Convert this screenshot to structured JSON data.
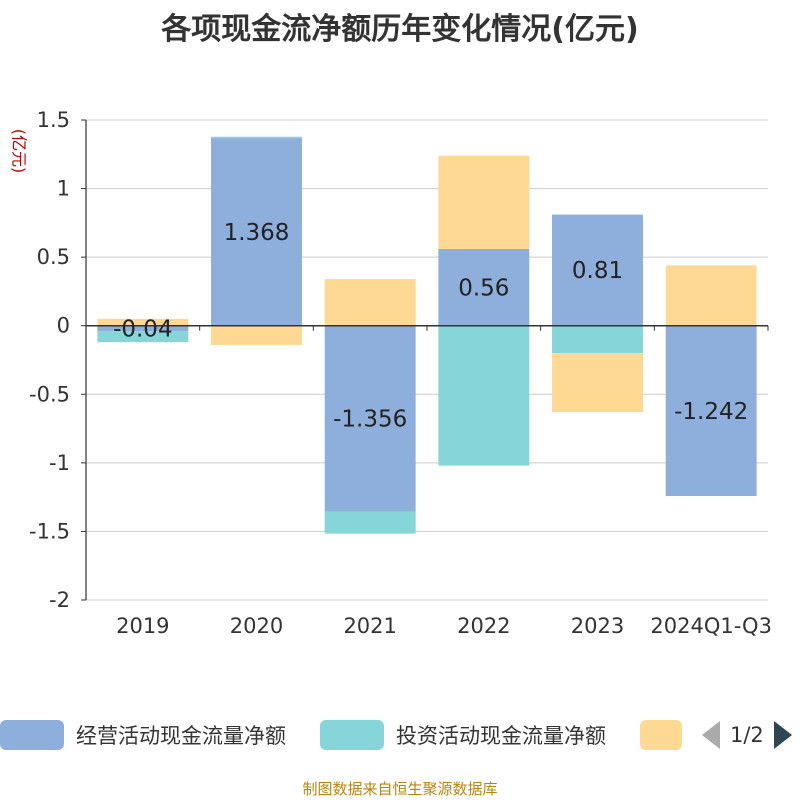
{
  "page": {
    "title": "各项现金流净额历年变化情况(亿元)",
    "source": "制图数据来自恒生聚源数据库",
    "pager": "1/2"
  },
  "chart_data": {
    "type": "bar",
    "stacked": true,
    "title": "各项现金流净额历年变化情况(亿元)",
    "ylabel": "(亿元)",
    "xlabel": "",
    "ylim": [
      -2,
      1.5
    ],
    "yticks": [
      1.5,
      1,
      0.5,
      0,
      -0.5,
      -1,
      -1.5,
      -2
    ],
    "grid": true,
    "legend_position": "bottom",
    "categories": [
      "2019",
      "2020",
      "2021",
      "2022",
      "2023",
      "2024Q1-Q3"
    ],
    "series": [
      {
        "name": "经营活动现金流量净额",
        "color": "#8eaedb",
        "values": [
          -0.04,
          1.368,
          -1.356,
          0.56,
          0.81,
          -1.242
        ],
        "labels": [
          "-0.04",
          "1.368",
          "-1.356",
          "0.56",
          "0.81",
          "-1.242"
        ]
      },
      {
        "name": "投资活动现金流量净额",
        "color": "#86d5d8",
        "values": [
          -0.08,
          0.01,
          -0.16,
          -1.02,
          -0.2,
          0.0
        ]
      },
      {
        "name": "",
        "color": "#fed994",
        "values": [
          0.05,
          -0.14,
          0.34,
          0.68,
          -0.43,
          0.44
        ]
      }
    ]
  }
}
